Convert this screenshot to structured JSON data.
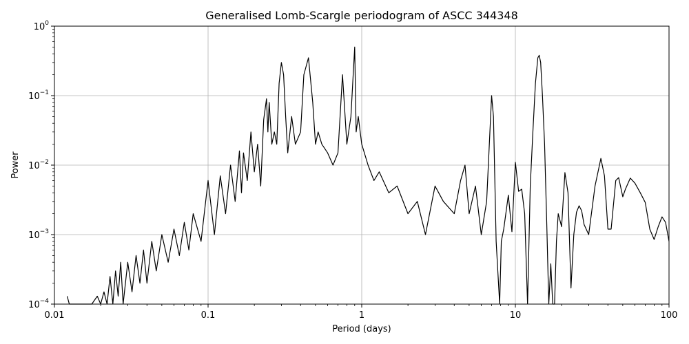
{
  "chart_data": {
    "type": "line",
    "title": "Generalised Lomb-Scargle periodogram of ASCC 344348",
    "xlabel": "Period (days)",
    "ylabel": "Power",
    "xscale": "log",
    "yscale": "log",
    "xlim": [
      0.01,
      100
    ],
    "ylim": [
      0.0001,
      1
    ],
    "grid": true,
    "line_color": "#000000",
    "x_ticks": [
      {
        "value": 0.01,
        "label": "0.01"
      },
      {
        "value": 0.1,
        "label": "0.1"
      },
      {
        "value": 1,
        "label": "1"
      },
      {
        "value": 10,
        "label": "10"
      },
      {
        "value": 100,
        "label": "100"
      }
    ],
    "y_ticks": [
      {
        "value": 0.0001,
        "base": "10",
        "exp": "−4"
      },
      {
        "value": 0.001,
        "base": "10",
        "exp": "−3"
      },
      {
        "value": 0.01,
        "base": "10",
        "exp": "−2"
      },
      {
        "value": 0.1,
        "base": "10",
        "exp": "−1"
      },
      {
        "value": 1,
        "base": "10",
        "exp": "0"
      }
    ],
    "series": [
      {
        "x": [
          0.0121,
          0.0125,
          0.0135,
          0.0175,
          0.019,
          0.02,
          0.021,
          0.022,
          0.023,
          0.024,
          0.025,
          0.026,
          0.027,
          0.028,
          0.03,
          0.032,
          0.034,
          0.036,
          0.038,
          0.04,
          0.043,
          0.046,
          0.05,
          0.055,
          0.06,
          0.065,
          0.07,
          0.075,
          0.08,
          0.09,
          0.1,
          0.11,
          0.12,
          0.13,
          0.14,
          0.15,
          0.16,
          0.165,
          0.17,
          0.18,
          0.19,
          0.2,
          0.21,
          0.22,
          0.23,
          0.24,
          0.245,
          0.25,
          0.26,
          0.27,
          0.28,
          0.29,
          0.3,
          0.31,
          0.32,
          0.33,
          0.35,
          0.37,
          0.4,
          0.42,
          0.45,
          0.48,
          0.5,
          0.52,
          0.55,
          0.6,
          0.65,
          0.7,
          0.75,
          0.8,
          0.85,
          0.9,
          0.92,
          0.95,
          1.0,
          1.1,
          1.2,
          1.3,
          1.5,
          1.7,
          2.0,
          2.3,
          2.6,
          3.0,
          3.4,
          4.0,
          4.4,
          4.7,
          5.0,
          5.5,
          6.0,
          6.5,
          7.0,
          7.2,
          7.5,
          7.9,
          8.1,
          8.4,
          9.0,
          9.5,
          10.0,
          10.5,
          11.0,
          11.5,
          12.0,
          12.5,
          13.0,
          13.5,
          14.0,
          14.3,
          14.6,
          15.0,
          15.5,
          16.0,
          16.5,
          17.0,
          17.5,
          18.0,
          18.5,
          19.0,
          20.0,
          21.0,
          22.0,
          23.0,
          24.0,
          25.0,
          26.0,
          27.0,
          28.0,
          30.0,
          33.0,
          36.0,
          38.0,
          40.0,
          42.0,
          45.0,
          47.0,
          50.0,
          52.0,
          56.0,
          60.0,
          65.0,
          70.0,
          75.0,
          80.0,
          85.0,
          90.0,
          95.0,
          100.0
        ],
        "y": [
          0.00013,
          0.0001,
          0.0001,
          0.0001,
          0.00013,
          0.0001,
          0.00015,
          0.0001,
          0.00025,
          0.0001,
          0.0003,
          0.00013,
          0.0004,
          0.0001,
          0.0004,
          0.00015,
          0.0005,
          0.0002,
          0.0006,
          0.0002,
          0.0008,
          0.0003,
          0.001,
          0.0004,
          0.0012,
          0.0005,
          0.0015,
          0.0006,
          0.002,
          0.0008,
          0.006,
          0.001,
          0.007,
          0.002,
          0.01,
          0.003,
          0.016,
          0.004,
          0.015,
          0.006,
          0.03,
          0.008,
          0.02,
          0.005,
          0.045,
          0.09,
          0.03,
          0.08,
          0.02,
          0.03,
          0.02,
          0.15,
          0.3,
          0.2,
          0.05,
          0.015,
          0.05,
          0.02,
          0.03,
          0.2,
          0.35,
          0.08,
          0.02,
          0.03,
          0.02,
          0.015,
          0.01,
          0.015,
          0.2,
          0.02,
          0.05,
          0.5,
          0.03,
          0.05,
          0.02,
          0.01,
          0.006,
          0.008,
          0.004,
          0.005,
          0.002,
          0.003,
          0.001,
          0.005,
          0.003,
          0.002,
          0.006,
          0.01,
          0.002,
          0.005,
          0.001,
          0.003,
          0.1,
          0.05,
          0.0008,
          0.0001,
          0.0008,
          0.0012,
          0.0037,
          0.0011,
          0.011,
          0.0042,
          0.0045,
          0.002,
          0.0001,
          0.005,
          0.03,
          0.15,
          0.35,
          0.38,
          0.3,
          0.1,
          0.02,
          0.0015,
          0.0001,
          0.00038,
          0.0001,
          0.0001,
          0.0008,
          0.002,
          0.0013,
          0.0078,
          0.004,
          0.00017,
          0.001,
          0.0021,
          0.0026,
          0.0022,
          0.0014,
          0.001,
          0.005,
          0.0125,
          0.007,
          0.0012,
          0.0012,
          0.006,
          0.0066,
          0.0035,
          0.0045,
          0.0065,
          0.0055,
          0.004,
          0.0029,
          0.0012,
          0.00085,
          0.0013,
          0.0018,
          0.0015,
          0.0008
        ]
      }
    ]
  }
}
